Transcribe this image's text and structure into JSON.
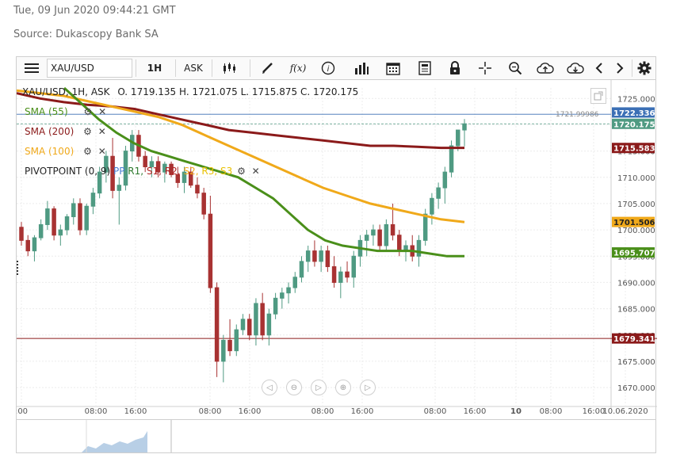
{
  "header": {
    "timestamp": "Tue, 09 Jun 2020 09:44:21 GMT",
    "source": "Source: Dukascopy Bank SA"
  },
  "toolbar": {
    "instrument": "XAU/USD",
    "period": "1H",
    "side": "ASK",
    "fx_label": "f(x)"
  },
  "ohlc": {
    "symbol": "XAU/USD, 1H, ASK",
    "open": "O. 1719.135",
    "high": "H. 1721.075",
    "low": "L. 1715.875",
    "close": "C. 1720.175"
  },
  "indicators": [
    {
      "label": "SMA (55)",
      "color": "#4a8f1a"
    },
    {
      "label": "SMA (200)",
      "color": "#8b1a1a"
    },
    {
      "label": "SMA (100)",
      "color": "#f0a91a"
    }
  ],
  "pivot": {
    "label": "PIVOTPOINT (0, 9)",
    "pp": "PP",
    "r1": "R1,",
    "s1": "S1,",
    "r2": "R2,",
    "s2": "S2,",
    "r3": "R3,",
    "s3": "S3"
  },
  "price_tags": {
    "hline_label": "1721.99986",
    "ask_line": "1722.336",
    "last": "1720.175",
    "sma200": "1715.583",
    "sma100": "1701.506",
    "sma55": "1695.707",
    "support": "1679.341",
    "partial_tick": "1680.000"
  },
  "yaxis": {
    "ticks": [
      "1725.000",
      "1720.000",
      "1715.000",
      "1710.000",
      "1705.000",
      "1700.000",
      "1695.000",
      "1690.000",
      "1685.000",
      "1680.000",
      "1675.000",
      "1670.000"
    ]
  },
  "xaxis": {
    "ticks": [
      ":00",
      "08:00",
      "16:00",
      "08:00",
      "16:00",
      "08:00",
      "16:00",
      "08:00",
      "16:00",
      "10",
      "08:00",
      "16:00",
      "10.06.2020"
    ]
  },
  "chart_data": {
    "type": "candlestick",
    "ylim": [
      1667,
      1727
    ],
    "colors": {
      "up": "#4f9a82",
      "down": "#a83232",
      "sma55": "#4a8f1a",
      "sma100": "#f0a91a",
      "sma200": "#8b1a1a"
    },
    "candles": [
      [
        1700.5,
        1701.5,
        1697,
        1698
      ],
      [
        1698,
        1699,
        1695,
        1696
      ],
      [
        1696,
        1699,
        1694,
        1698.5
      ],
      [
        1698.5,
        1702,
        1698,
        1701
      ],
      [
        1701,
        1705.5,
        1700,
        1704
      ],
      [
        1704,
        1704.5,
        1698,
        1699
      ],
      [
        1699,
        1701,
        1697,
        1700
      ],
      [
        1700,
        1703,
        1699,
        1702.5
      ],
      [
        1702.5,
        1706,
        1701,
        1705
      ],
      [
        1705,
        1706,
        1699,
        1700
      ],
      [
        1700,
        1705,
        1699,
        1704.5
      ],
      [
        1704.5,
        1708,
        1703,
        1707
      ],
      [
        1707,
        1712,
        1706,
        1711
      ],
      [
        1711,
        1715,
        1709,
        1714
      ],
      [
        1714,
        1717.5,
        1706,
        1707.5
      ],
      [
        1707.5,
        1710,
        1701,
        1708.5
      ],
      [
        1708.5,
        1716,
        1707.5,
        1715
      ],
      [
        1715,
        1719,
        1713,
        1718
      ],
      [
        1718,
        1719,
        1713,
        1714
      ],
      [
        1714,
        1715,
        1711,
        1712
      ],
      [
        1712,
        1714,
        1710,
        1713
      ],
      [
        1713,
        1714,
        1710,
        1711
      ],
      [
        1711,
        1713,
        1709,
        1712.5
      ],
      [
        1712.5,
        1713,
        1710,
        1710.5
      ],
      [
        1710.5,
        1712,
        1708,
        1709
      ],
      [
        1709,
        1712,
        1707,
        1711
      ],
      [
        1711,
        1712,
        1708,
        1708.5
      ],
      [
        1708.5,
        1710,
        1706,
        1707
      ],
      [
        1707,
        1708,
        1702,
        1703
      ],
      [
        1703,
        1706.5,
        1688,
        1689
      ],
      [
        1689,
        1690,
        1672,
        1675
      ],
      [
        1675,
        1680,
        1671,
        1679
      ],
      [
        1679,
        1683,
        1676,
        1677
      ],
      [
        1677,
        1682,
        1676,
        1681
      ],
      [
        1681,
        1684,
        1680,
        1683
      ],
      [
        1683,
        1684,
        1679,
        1680
      ],
      [
        1680,
        1687,
        1678,
        1686
      ],
      [
        1686,
        1688,
        1679,
        1680
      ],
      [
        1680,
        1685,
        1678,
        1684
      ],
      [
        1684,
        1688,
        1683,
        1687
      ],
      [
        1687,
        1689,
        1685,
        1688
      ],
      [
        1688,
        1690,
        1686,
        1689
      ],
      [
        1689,
        1692,
        1688,
        1691
      ],
      [
        1691,
        1695,
        1690,
        1694
      ],
      [
        1694,
        1697,
        1692,
        1696
      ],
      [
        1696,
        1698,
        1693,
        1694
      ],
      [
        1694,
        1697,
        1692,
        1696
      ],
      [
        1696,
        1697,
        1692,
        1693
      ],
      [
        1693,
        1695,
        1689,
        1690
      ],
      [
        1690,
        1693,
        1687,
        1692
      ],
      [
        1692,
        1694,
        1690,
        1691
      ],
      [
        1691,
        1696,
        1689,
        1695
      ],
      [
        1695,
        1699,
        1693,
        1698
      ],
      [
        1698,
        1700,
        1695,
        1699
      ],
      [
        1699,
        1701,
        1697,
        1700
      ],
      [
        1700,
        1701,
        1696,
        1697
      ],
      [
        1697,
        1702,
        1696,
        1701
      ],
      [
        1701,
        1705,
        1698,
        1699
      ],
      [
        1699,
        1700,
        1695,
        1696
      ],
      [
        1696,
        1698,
        1694,
        1697
      ],
      [
        1697,
        1699,
        1694,
        1695
      ],
      [
        1695,
        1699,
        1693,
        1698
      ],
      [
        1698,
        1704,
        1697,
        1703
      ],
      [
        1703,
        1707,
        1701,
        1706
      ],
      [
        1706,
        1709,
        1704,
        1708
      ],
      [
        1708,
        1712,
        1705,
        1711
      ],
      [
        1711,
        1717,
        1710,
        1716
      ],
      [
        1716,
        1719,
        1715,
        1719
      ],
      [
        1719,
        1721.075,
        1715.875,
        1720.175
      ]
    ],
    "sma55": [
      1727,
      1724,
      1721,
      1718.5,
      1716.5,
      1715,
      1714,
      1713,
      1712,
      1711,
      1710,
      1708,
      1706,
      1703,
      1700,
      1698,
      1697,
      1696.5,
      1696,
      1696,
      1696,
      1695.5,
      1695,
      1695
    ],
    "sma100": [
      1726.5,
      1726,
      1725.5,
      1724.5,
      1723.5,
      1722.5,
      1721.5,
      1720,
      1718,
      1716,
      1714,
      1712,
      1710,
      1708,
      1706.5,
      1705,
      1704,
      1703,
      1702,
      1701.5
    ],
    "sma200": [
      1726,
      1725,
      1724.3,
      1723.8,
      1723.5,
      1723,
      1722,
      1721,
      1720,
      1719,
      1718.5,
      1718,
      1717.5,
      1717,
      1716.5,
      1716,
      1716,
      1715.8,
      1715.6,
      1715.6
    ]
  }
}
